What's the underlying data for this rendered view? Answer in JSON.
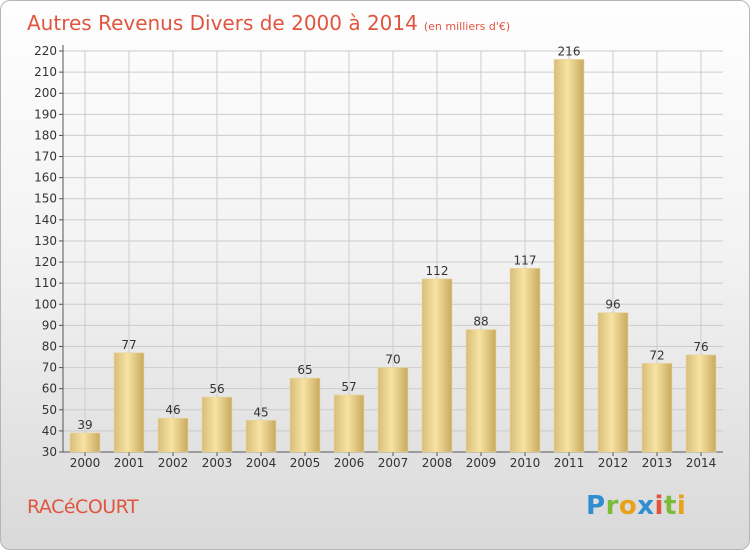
{
  "title": "Autres Revenus Divers de 2000 à 2014",
  "subtitle": "(en milliers d'€)",
  "location": "RACéCOURT",
  "logo": {
    "letters": [
      "P",
      "r",
      "o",
      "x",
      "i",
      "t",
      "i"
    ]
  },
  "colors": {
    "title": "#e0553f",
    "bar_light": "#f7e3a3",
    "bar_dark": "#d1b26a",
    "grid": "#cccccc"
  },
  "chart_data": {
    "type": "bar",
    "title": "Autres Revenus Divers de 2000 à 2014",
    "subtitle": "(en milliers d'€)",
    "categories": [
      "2000",
      "2001",
      "2002",
      "2003",
      "2004",
      "2005",
      "2006",
      "2007",
      "2008",
      "2009",
      "2010",
      "2011",
      "2012",
      "2013",
      "2014"
    ],
    "values": [
      39,
      77,
      46,
      56,
      45,
      65,
      57,
      70,
      112,
      88,
      117,
      216,
      96,
      72,
      76
    ],
    "ylim": [
      30,
      220
    ],
    "yticks": [
      30,
      40,
      50,
      60,
      70,
      80,
      90,
      100,
      110,
      120,
      130,
      140,
      150,
      160,
      170,
      180,
      190,
      200,
      210,
      220
    ],
    "grid": true,
    "xlabel": "",
    "ylabel": ""
  }
}
